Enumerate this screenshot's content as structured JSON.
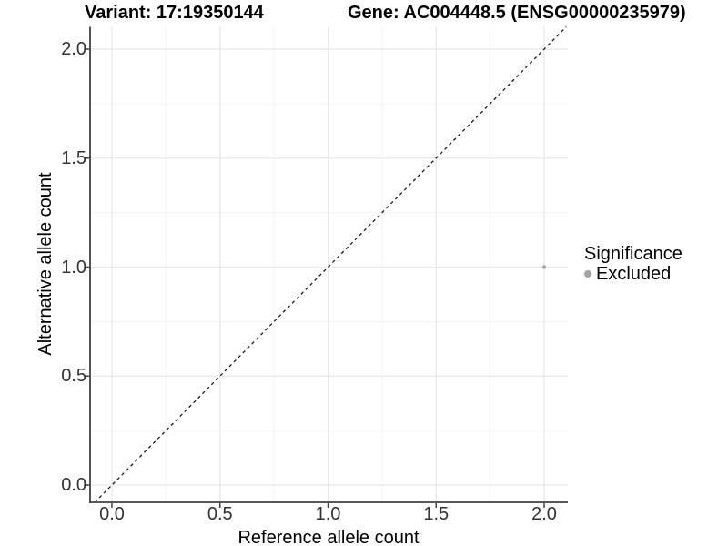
{
  "header": {
    "variant_title": "Variant: 17:19350144",
    "gene_title": "Gene: AC004448.5 (ENSG00000235979)"
  },
  "axes": {
    "x_title": "Reference allele count",
    "y_title": "Alternative allele count"
  },
  "legend": {
    "title": "Significance",
    "items": [
      {
        "label": "Excluded",
        "color": "#a3a3a3"
      }
    ]
  },
  "chart_data": {
    "type": "scatter",
    "title": "Variant: 17:19350144    Gene: AC004448.5 (ENSG00000235979)",
    "xlabel": "Reference allele count",
    "ylabel": "Alternative allele count",
    "xlim": [
      -0.1,
      2.11
    ],
    "ylim": [
      -0.08,
      2.1
    ],
    "x_ticks": [
      0.0,
      0.5,
      1.0,
      1.5,
      2.0
    ],
    "y_ticks": [
      0.0,
      0.5,
      1.0,
      1.5,
      2.0
    ],
    "x_tick_labels": [
      "0.0",
      "0.5",
      "1.0",
      "1.5",
      "2.0"
    ],
    "y_tick_labels": [
      "0.0",
      "0.5",
      "1.0",
      "1.5",
      "2.0"
    ],
    "x_minor_ticks": [
      0.25,
      0.75,
      1.25,
      1.75
    ],
    "y_minor_ticks": [
      0.25,
      0.75,
      1.25,
      1.75
    ],
    "grid": "major-and-minor",
    "legend_position": "right-middle",
    "series": [
      {
        "name": "Excluded",
        "color": "#a9a9a9",
        "points": [
          {
            "x": 2.0,
            "y": 1.0
          }
        ]
      }
    ],
    "reference_line": {
      "type": "identity y=x",
      "style": "dashed",
      "color": "#1a1a1a"
    }
  },
  "style": {
    "grid_major_color": "#e7e7e7",
    "grid_minor_color": "#f3f3f3",
    "axis_line_color": "#404040",
    "tick_color": "#404040",
    "dash_color": "#1a1a1a"
  }
}
